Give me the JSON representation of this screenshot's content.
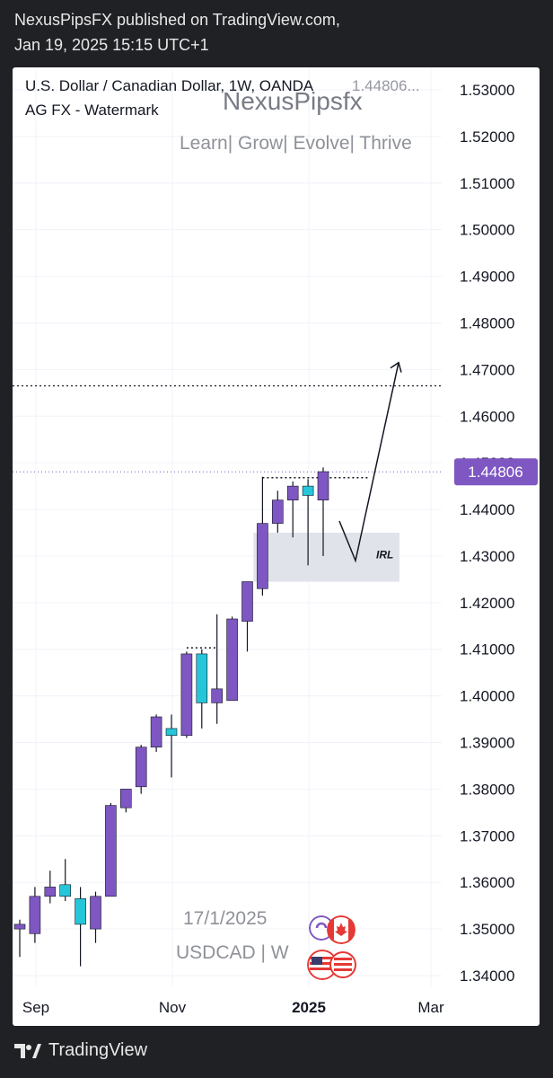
{
  "header": {
    "published_line": "NexusPipsFX published on TradingView.com,",
    "date_line": "Jan 19, 2025 15:15 UTC+1"
  },
  "chart_info": {
    "symbol_line": "U.S. Dollar / Canadian Dollar, 1W, OANDA",
    "last_price_short": "1.44806...",
    "indicator_line": "AG FX - Watermark"
  },
  "watermark": {
    "brand": "NexusPipsfx",
    "slogan": "Learn| Grow| Evolve| Thrive",
    "date": "17/1/2025",
    "pair": "USDCAD | W"
  },
  "footer": {
    "brand": "TradingView"
  },
  "colors": {
    "bull": "#7e57c2",
    "bear": "#26c6da",
    "wick": "#131722",
    "price_label": "#7e57c2",
    "grid": "#f0f3fa",
    "zone": "#e1e3ea"
  },
  "chart_data": {
    "type": "candlestick",
    "symbol": "USDCAD",
    "timeframe": "1W",
    "ylim": [
      1.337,
      1.535
    ],
    "y_ticks": [
      1.34,
      1.35,
      1.36,
      1.37,
      1.38,
      1.39,
      1.4,
      1.41,
      1.42,
      1.43,
      1.44,
      1.45,
      1.46,
      1.47,
      1.48,
      1.49,
      1.5,
      1.51,
      1.52,
      1.53
    ],
    "x_labels": [
      "Sep",
      "Nov",
      "2025",
      "Mar"
    ],
    "last_price": "1.44806",
    "candles": [
      {
        "o": 1.35,
        "h": 1.352,
        "l": 1.344,
        "c": 1.351
      },
      {
        "o": 1.349,
        "h": 1.359,
        "l": 1.347,
        "c": 1.357
      },
      {
        "o": 1.357,
        "h": 1.3625,
        "l": 1.3555,
        "c": 1.359
      },
      {
        "o": 1.3595,
        "h": 1.365,
        "l": 1.356,
        "c": 1.357
      },
      {
        "o": 1.3565,
        "h": 1.359,
        "l": 1.342,
        "c": 1.351
      },
      {
        "o": 1.35,
        "h": 1.358,
        "l": 1.347,
        "c": 1.357
      },
      {
        "o": 1.357,
        "h": 1.377,
        "l": 1.357,
        "c": 1.3765
      },
      {
        "o": 1.376,
        "h": 1.38,
        "l": 1.375,
        "c": 1.38
      },
      {
        "o": 1.3805,
        "h": 1.3895,
        "l": 1.379,
        "c": 1.389
      },
      {
        "o": 1.389,
        "h": 1.396,
        "l": 1.388,
        "c": 1.3955
      },
      {
        "o": 1.393,
        "h": 1.396,
        "l": 1.3825,
        "c": 1.3915
      },
      {
        "o": 1.3915,
        "h": 1.4095,
        "l": 1.391,
        "c": 1.409
      },
      {
        "o": 1.409,
        "h": 1.41,
        "l": 1.393,
        "c": 1.3985
      },
      {
        "o": 1.3985,
        "h": 1.4175,
        "l": 1.394,
        "c": 1.4015
      },
      {
        "o": 1.399,
        "h": 1.417,
        "l": 1.399,
        "c": 1.4165
      },
      {
        "o": 1.416,
        "h": 1.4245,
        "l": 1.4095,
        "c": 1.4245
      },
      {
        "o": 1.423,
        "h": 1.447,
        "l": 1.4215,
        "c": 1.437
      },
      {
        "o": 1.437,
        "h": 1.444,
        "l": 1.435,
        "c": 1.442
      },
      {
        "o": 1.442,
        "h": 1.446,
        "l": 1.434,
        "c": 1.445
      },
      {
        "o": 1.445,
        "h": 1.4465,
        "l": 1.428,
        "c": 1.443
      },
      {
        "o": 1.442,
        "h": 1.449,
        "l": 1.43,
        "c": 1.4481
      }
    ],
    "levels": [
      {
        "price": 1.4665,
        "style": "dotted"
      },
      {
        "price": 1.44806,
        "style": "dotted-current"
      }
    ],
    "zone": {
      "label": "IRL",
      "from_price": 1.4245,
      "to_price": 1.435
    },
    "projection": [
      1.4375,
      1.429,
      1.4715
    ]
  }
}
